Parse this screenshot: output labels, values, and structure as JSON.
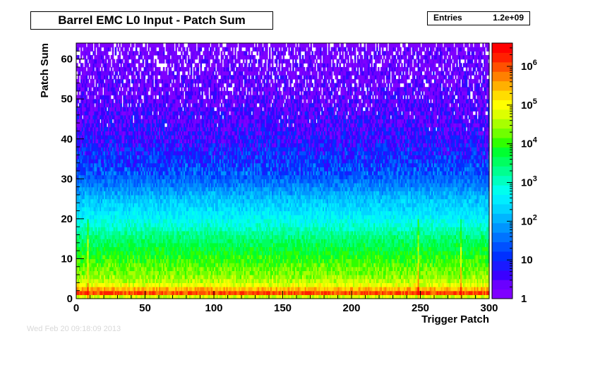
{
  "title": "Barrel EMC L0 Input - Patch Sum",
  "stats": {
    "label": "Entries",
    "value": "1.2e+09"
  },
  "footer_text": "Wed Feb 20 09:18:09 2013",
  "chart_data": {
    "type": "heatmap",
    "title": "Barrel EMC L0 Input - Patch Sum",
    "xlabel": "Trigger Patch",
    "ylabel": "Patch Sum",
    "xlim": [
      0,
      300
    ],
    "ylim": [
      0,
      64
    ],
    "xticks": [
      0,
      50,
      100,
      150,
      200,
      250,
      300
    ],
    "yticks": [
      0,
      10,
      20,
      30,
      40,
      50,
      60
    ],
    "entries": "1.2e+09",
    "z_scale": "log",
    "zlim": [
      1,
      4000000
    ],
    "zticks": [
      {
        "value": 1,
        "base": "1",
        "exp": ""
      },
      {
        "value": 10,
        "base": "10",
        "exp": ""
      },
      {
        "value": 100,
        "base": "10",
        "exp": "2"
      },
      {
        "value": 1000,
        "base": "10",
        "exp": "3"
      },
      {
        "value": 10000,
        "base": "10",
        "exp": "4"
      },
      {
        "value": 100000,
        "base": "10",
        "exp": "5"
      },
      {
        "value": 1000000,
        "base": "10",
        "exp": "6"
      }
    ],
    "colorbar_position": "right",
    "palette": [
      "#7f00ff",
      "#6a00ff",
      "#3a00ff",
      "#1a1aff",
      "#0030ff",
      "#0050ff",
      "#0073ff",
      "#0095ff",
      "#00b5ff",
      "#00d5ff",
      "#00eeff",
      "#00ffee",
      "#00ffc0",
      "#00ff90",
      "#00ff60",
      "#00ff30",
      "#30ff00",
      "#70ff00",
      "#a8ff00",
      "#ddff00",
      "#ffff00",
      "#ffdd00",
      "#ffb000",
      "#ff8000",
      "#ff5000",
      "#ff2000",
      "#ff0000"
    ],
    "profile_description": "Counts highest at Patch Sum 1-2 (~1e6), falling log-linearly to ~1 near Patch Sum 60; overflow row at 63",
    "profile_counts_by_patch_sum": [
      [
        0,
        2000
      ],
      [
        1,
        1500000
      ],
      [
        2,
        800000
      ],
      [
        3,
        100000
      ],
      [
        5,
        30000
      ],
      [
        10,
        10000
      ],
      [
        15,
        3000
      ],
      [
        20,
        500
      ],
      [
        25,
        150
      ],
      [
        30,
        30
      ],
      [
        35,
        12
      ],
      [
        40,
        5
      ],
      [
        45,
        3
      ],
      [
        50,
        2
      ],
      [
        55,
        1.5
      ],
      [
        60,
        1.2
      ],
      [
        63,
        1
      ]
    ],
    "hot_patches": [
      8,
      248,
      279
    ]
  }
}
